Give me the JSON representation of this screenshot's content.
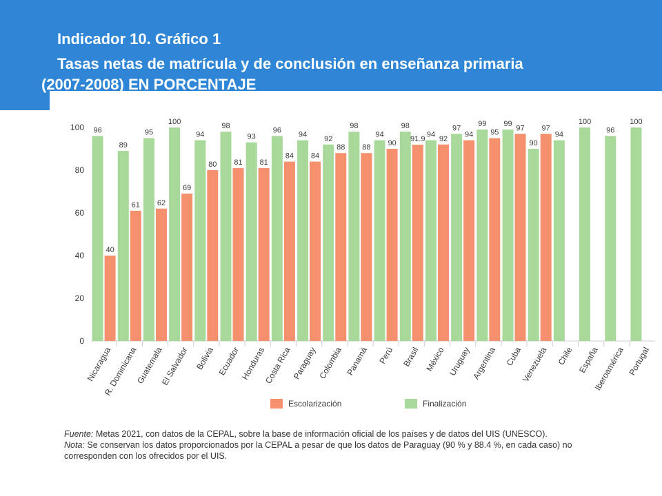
{
  "slide": {
    "title_line1": "Indicador 10. Gráfico 1",
    "title_line2": "Tasas netas de matrícula y de conclusión en enseñanza primaria",
    "title_line3": "(2007-2008) EN PORCENTAJE",
    "header_color": "#2f86d6"
  },
  "chart_data": {
    "type": "bar",
    "categories": [
      "Nicaragua",
      "R. Dominicana",
      "Guatemala",
      "El Salvador",
      "Bolivia",
      "Ecuador",
      "Honduras",
      "Costa Rica",
      "Paraguay",
      "Colombia",
      "Panamá",
      "Perú",
      "Brasil",
      "México",
      "Uruguay",
      "Argentina",
      "Cuba",
      "Venezuela",
      "Chile",
      "España",
      "Iberoamérica",
      "Portugal"
    ],
    "series": [
      {
        "name": "Finalización",
        "color": "#a8d89a",
        "values": [
          96,
          89,
          95,
          100,
          94,
          98,
          93,
          96,
          94,
          92,
          98,
          94,
          98,
          94,
          97,
          99,
          99,
          90,
          94,
          100,
          96,
          100
        ],
        "labels": [
          "96",
          "89",
          "95",
          "100",
          "94",
          "98",
          "93",
          "96",
          "94",
          "92",
          "98",
          "94",
          "98",
          "94",
          "97",
          "99",
          "99",
          "90",
          "94",
          "100",
          "96",
          "100"
        ]
      },
      {
        "name": "Escolarización",
        "color": "#f4906c",
        "values": [
          40,
          61,
          62,
          69,
          80,
          81,
          81,
          84,
          84,
          88,
          88,
          90,
          91.9,
          92,
          94,
          95,
          97,
          97,
          null,
          null,
          null,
          null
        ],
        "labels": [
          "40",
          "61",
          "62",
          "69",
          "80",
          "81",
          "81",
          "84",
          "84",
          "88",
          "88",
          "90",
          "91.9",
          "92",
          "94",
          "95",
          "97",
          "97",
          "",
          "",
          "",
          ""
        ]
      }
    ],
    "legend_order": [
      "Escolarización",
      "Finalización"
    ],
    "legend_position": "bottom",
    "yticks": [
      "0",
      "20",
      "40",
      "60",
      "80",
      "100"
    ],
    "ylim": [
      0,
      100
    ],
    "grid": false
  },
  "notes": {
    "fuente_label": "Fuente:",
    "fuente_text": " Metas 2021, con datos de la CEPAL, sobre la base de información oficial de los países y de datos del UIS (UNESCO).",
    "nota_label": "Nota:",
    "nota_text": " Se conservan los datos proporcionados por la CEPAL a pesar de que los datos de Paraguay (90 % y 88.4 %, en cada caso) no",
    "nota_text2": "corresponden con los ofrecidos por el UIS."
  }
}
